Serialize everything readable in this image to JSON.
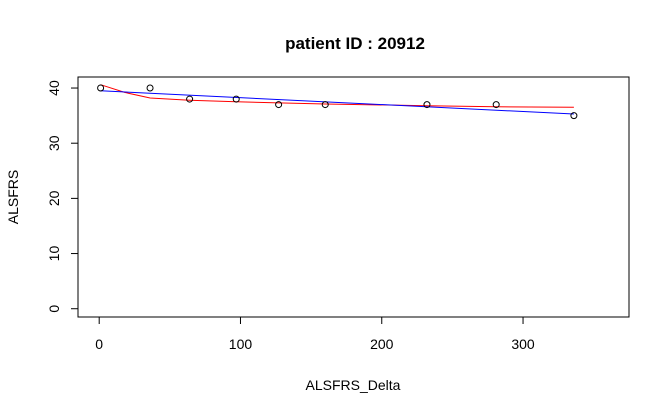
{
  "chart_data": {
    "type": "scatter",
    "title": "patient ID : 20912",
    "xlabel": "ALSFRS_Delta",
    "ylabel": "ALSFRS",
    "xlim": [
      -15,
      375
    ],
    "ylim": [
      -1.5,
      42
    ],
    "xticks": [
      0,
      100,
      200,
      300
    ],
    "yticks": [
      0,
      10,
      20,
      30,
      40
    ],
    "grid": false,
    "legend": "none",
    "points": [
      {
        "x": 1,
        "y": 40
      },
      {
        "x": 36,
        "y": 40
      },
      {
        "x": 64,
        "y": 38
      },
      {
        "x": 97,
        "y": 38
      },
      {
        "x": 127,
        "y": 37
      },
      {
        "x": 160,
        "y": 37
      },
      {
        "x": 232,
        "y": 37
      },
      {
        "x": 281,
        "y": 37
      },
      {
        "x": 336,
        "y": 35
      }
    ],
    "lines": [
      {
        "color": "#ff0000",
        "x": [
          1,
          18,
          36,
          64,
          97,
          127,
          160,
          232,
          281,
          336
        ],
        "y": [
          40.6,
          39.2,
          38.2,
          37.8,
          37.5,
          37.3,
          37.1,
          36.8,
          36.6,
          36.5
        ]
      },
      {
        "color": "#0000ff",
        "x": [
          1,
          336
        ],
        "y": [
          39.5,
          35.3
        ]
      }
    ]
  }
}
